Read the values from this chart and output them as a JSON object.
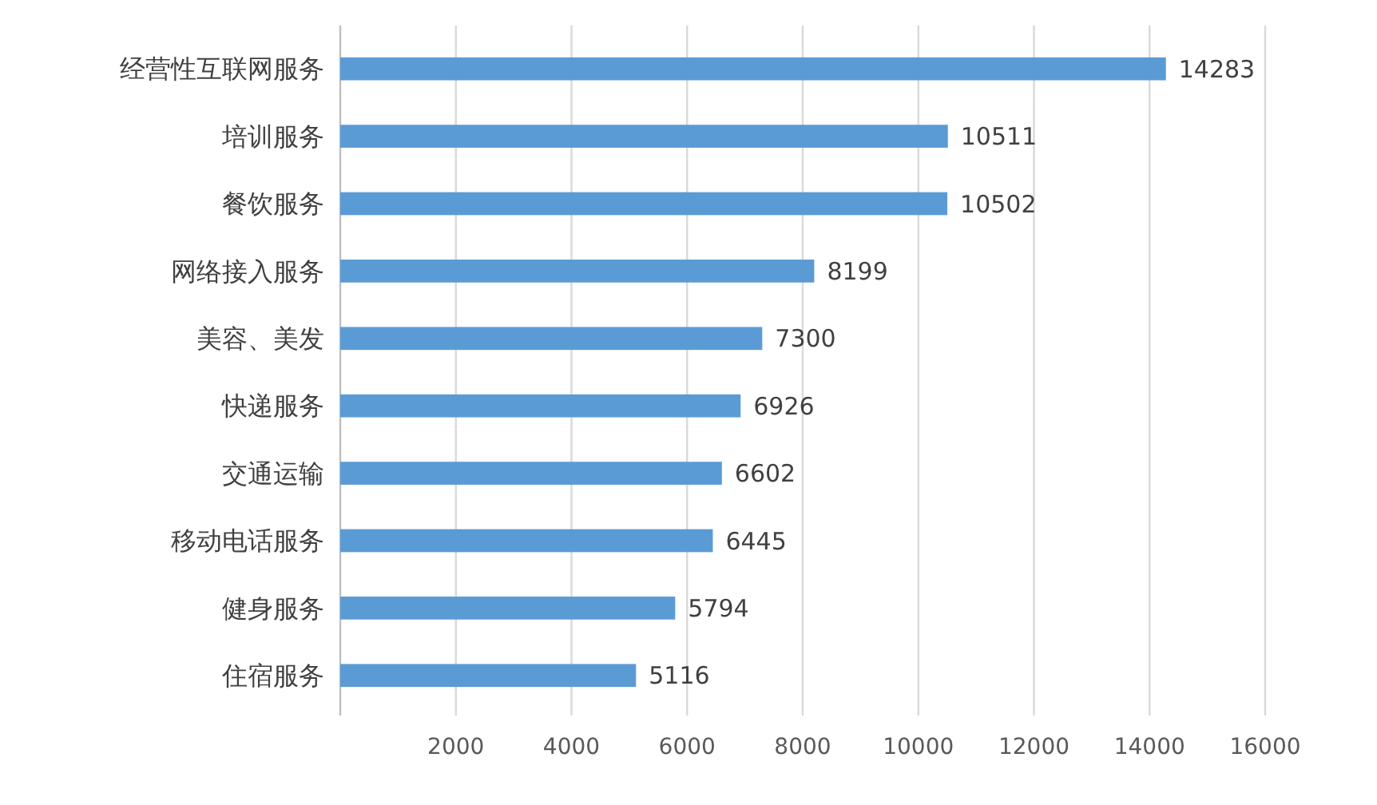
{
  "chart_data": {
    "type": "bar",
    "orientation": "horizontal",
    "categories": [
      "经营性互联网服务",
      "培训服务",
      "餐饮服务",
      "网络接入服务",
      "美容、美发",
      "快递服务",
      "交通运输",
      "移动电话服务",
      "健身服务",
      "住宿服务"
    ],
    "values": [
      14283,
      10511,
      10502,
      8199,
      7300,
      6926,
      6602,
      6445,
      5794,
      5116
    ],
    "color": "#5b9bd5",
    "data_labels": true,
    "grid": "x",
    "xlim": [
      0,
      16000
    ],
    "xticks": [
      2000,
      4000,
      6000,
      8000,
      10000,
      12000,
      14000,
      16000
    ]
  }
}
